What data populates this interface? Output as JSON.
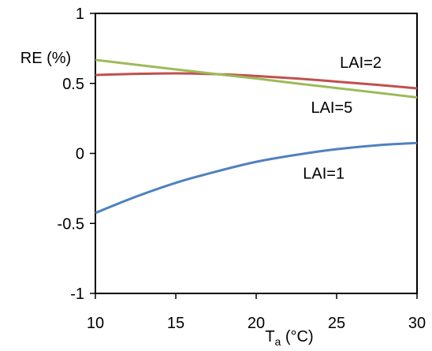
{
  "chart_data": {
    "type": "line",
    "title": "",
    "xlabel": "T",
    "xlabel_subscript": "a",
    "xlabel_unit": " (°C)",
    "ylabel": "RE (%)",
    "xlim": [
      10,
      30
    ],
    "ylim": [
      -1,
      1
    ],
    "xticks": [
      10,
      15,
      20,
      25,
      30
    ],
    "yticks": [
      -1,
      -0.5,
      0,
      0.5,
      1
    ],
    "xtick_labels": [
      "10",
      "15",
      "20",
      "25",
      "30"
    ],
    "ytick_labels": [
      "-1",
      "-0.5",
      "0",
      "0.5",
      "1"
    ],
    "grid": false,
    "legend": "none",
    "series": [
      {
        "name": "LAI=2",
        "color": "#C0504D",
        "x": [
          10,
          12.5,
          15,
          17.5,
          20,
          22.5,
          25,
          27.5,
          30
        ],
        "y": [
          0.56,
          0.568,
          0.572,
          0.566,
          0.553,
          0.535,
          0.513,
          0.49,
          0.465
        ]
      },
      {
        "name": "LAI=5",
        "color": "#9BBB59",
        "x": [
          10,
          12.5,
          15,
          17.5,
          20,
          22.5,
          25,
          27.5,
          30
        ],
        "y": [
          0.668,
          0.634,
          0.6,
          0.567,
          0.535,
          0.5,
          0.467,
          0.434,
          0.4
        ]
      },
      {
        "name": "LAI=1",
        "color": "#4F81BD",
        "x": [
          10,
          12.5,
          15,
          17.5,
          20,
          22.5,
          25,
          27.5,
          30
        ],
        "y": [
          -0.425,
          -0.31,
          -0.21,
          -0.13,
          -0.06,
          -0.01,
          0.03,
          0.058,
          0.075
        ]
      }
    ],
    "annotations": [
      {
        "text": "LAI=2",
        "series": 0,
        "x": 26.5,
        "y": 0.61
      },
      {
        "text": "LAI=5",
        "series": 1,
        "x": 24.7,
        "y": 0.29
      },
      {
        "text": "LAI=1",
        "series": 2,
        "x": 24.2,
        "y": -0.18
      }
    ]
  }
}
